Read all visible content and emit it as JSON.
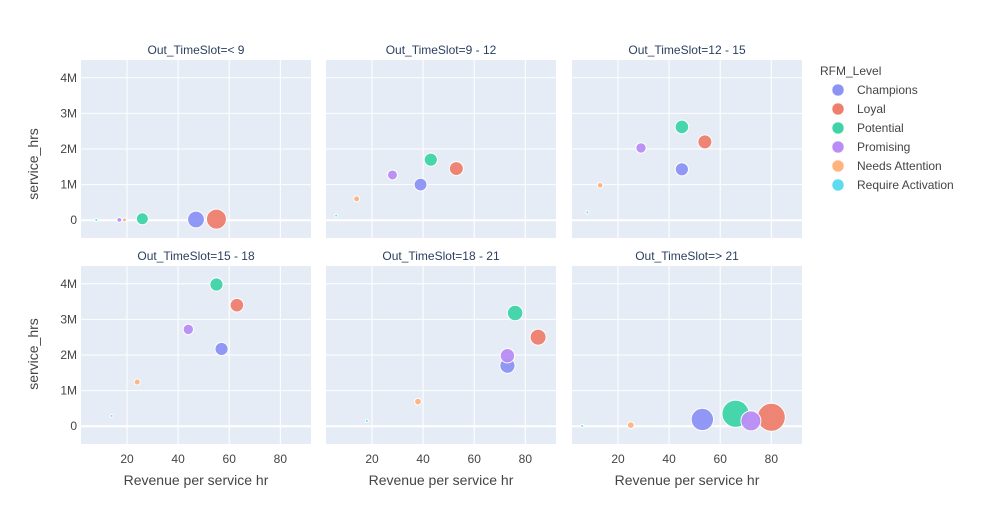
{
  "chart_data": {
    "type": "scatter",
    "subtype": "bubble-facets",
    "x_label": "Revenue per service hr",
    "y_label": "service_hrs",
    "x_ticks": [
      20,
      40,
      60,
      80
    ],
    "y_ticks": [
      {
        "value": 0,
        "label": "0"
      },
      {
        "value": 1000000,
        "label": "1M"
      },
      {
        "value": 2000000,
        "label": "2M"
      },
      {
        "value": 3000000,
        "label": "3M"
      },
      {
        "value": 4000000,
        "label": "4M"
      }
    ],
    "xlim": [
      2,
      92
    ],
    "ylim": [
      -500000,
      4500000
    ],
    "legend": {
      "title": "RFM_Level",
      "position": "right",
      "entries": [
        {
          "name": "Champions",
          "color": "#8c93f5"
        },
        {
          "name": "Loyal",
          "color": "#ef7f6d"
        },
        {
          "name": "Potential",
          "color": "#3fd4a8"
        },
        {
          "name": "Promising",
          "color": "#b98df6"
        },
        {
          "name": "Needs Attention",
          "color": "#ffb37f"
        },
        {
          "name": "Require Activation",
          "color": "#5ddcf0"
        }
      ]
    },
    "facets": [
      {
        "title": "Out_TimeSlot=< 9",
        "points": [
          {
            "series": "Champions",
            "x": 47,
            "y": 20000,
            "size": 0.42
          },
          {
            "series": "Loyal",
            "x": 55,
            "y": 30000,
            "size": 0.5
          },
          {
            "series": "Potential",
            "x": 26,
            "y": 40000,
            "size": 0.3
          },
          {
            "series": "Promising",
            "x": 17,
            "y": 10000,
            "size": 0.12
          },
          {
            "series": "Needs Attention",
            "x": 19,
            "y": 10000,
            "size": 0.1
          },
          {
            "series": "Require Activation",
            "x": 8,
            "y": 5000,
            "size": 0.05
          }
        ]
      },
      {
        "title": "Out_TimeSlot=9 - 12",
        "points": [
          {
            "series": "Champions",
            "x": 39,
            "y": 1000000,
            "size": 0.32
          },
          {
            "series": "Loyal",
            "x": 53,
            "y": 1450000,
            "size": 0.35
          },
          {
            "series": "Potential",
            "x": 43,
            "y": 1700000,
            "size": 0.33
          },
          {
            "series": "Promising",
            "x": 28,
            "y": 1270000,
            "size": 0.25
          },
          {
            "series": "Needs Attention",
            "x": 14,
            "y": 600000,
            "size": 0.15
          },
          {
            "series": "Require Activation",
            "x": 6,
            "y": 130000,
            "size": 0.05
          }
        ]
      },
      {
        "title": "Out_TimeSlot=12 - 15",
        "points": [
          {
            "series": "Champions",
            "x": 45,
            "y": 1430000,
            "size": 0.33
          },
          {
            "series": "Loyal",
            "x": 54,
            "y": 2200000,
            "size": 0.35
          },
          {
            "series": "Potential",
            "x": 45,
            "y": 2620000,
            "size": 0.34
          },
          {
            "series": "Promising",
            "x": 29,
            "y": 2030000,
            "size": 0.26
          },
          {
            "series": "Needs Attention",
            "x": 13,
            "y": 980000,
            "size": 0.14
          },
          {
            "series": "Require Activation",
            "x": 8,
            "y": 220000,
            "size": 0.05
          }
        ]
      },
      {
        "title": "Out_TimeSlot=15 - 18",
        "points": [
          {
            "series": "Champions",
            "x": 57,
            "y": 2170000,
            "size": 0.33
          },
          {
            "series": "Loyal",
            "x": 63,
            "y": 3400000,
            "size": 0.34
          },
          {
            "series": "Potential",
            "x": 55,
            "y": 3980000,
            "size": 0.33
          },
          {
            "series": "Promising",
            "x": 44,
            "y": 2720000,
            "size": 0.26
          },
          {
            "series": "Needs Attention",
            "x": 24,
            "y": 1240000,
            "size": 0.15
          },
          {
            "series": "Require Activation",
            "x": 14,
            "y": 290000,
            "size": 0.06
          }
        ]
      },
      {
        "title": "Out_TimeSlot=18 - 21",
        "points": [
          {
            "series": "Champions",
            "x": 73,
            "y": 1700000,
            "size": 0.38
          },
          {
            "series": "Loyal",
            "x": 85,
            "y": 2500000,
            "size": 0.4
          },
          {
            "series": "Potential",
            "x": 76,
            "y": 3180000,
            "size": 0.39
          },
          {
            "series": "Promising",
            "x": 73,
            "y": 1980000,
            "size": 0.36
          },
          {
            "series": "Needs Attention",
            "x": 38,
            "y": 690000,
            "size": 0.17
          },
          {
            "series": "Require Activation",
            "x": 18,
            "y": 150000,
            "size": 0.06
          }
        ]
      },
      {
        "title": "Out_TimeSlot=> 21",
        "points": [
          {
            "series": "Champions",
            "x": 53,
            "y": 190000,
            "size": 0.56
          },
          {
            "series": "Loyal",
            "x": 80,
            "y": 250000,
            "size": 0.7
          },
          {
            "series": "Potential",
            "x": 66,
            "y": 350000,
            "size": 0.68
          },
          {
            "series": "Promising",
            "x": 72,
            "y": 150000,
            "size": 0.5
          },
          {
            "series": "Needs Attention",
            "x": 25,
            "y": 30000,
            "size": 0.17
          },
          {
            "series": "Require Activation",
            "x": 6,
            "y": 5000,
            "size": 0.05
          }
        ]
      }
    ]
  }
}
